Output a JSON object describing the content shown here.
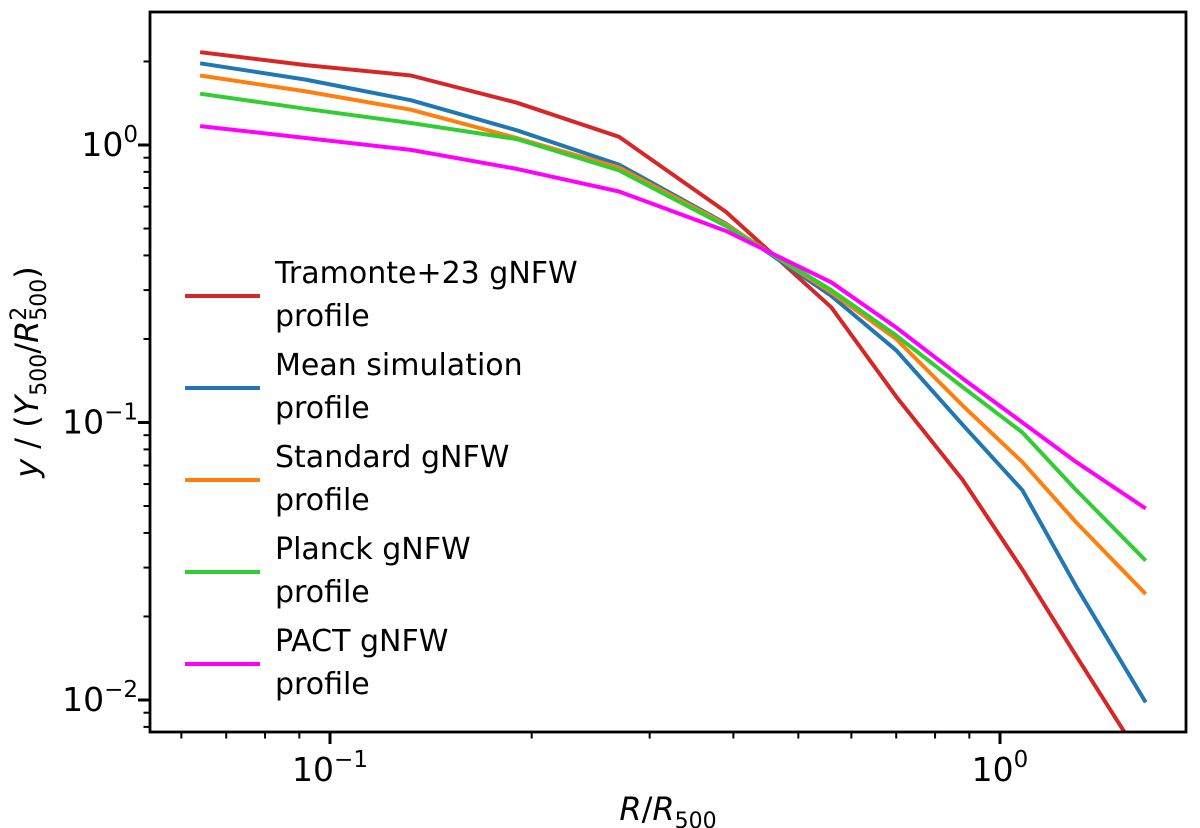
{
  "chart_data": {
    "type": "line",
    "title": "",
    "xlabel": "R/R500",
    "ylabel": "y / (Y500/R500^2)",
    "x_scale": "log",
    "y_scale": "log",
    "xlim": [
      0.054,
      1.9
    ],
    "ylim": [
      0.0077,
      3.0
    ],
    "grid": false,
    "legend_position": "inside center-left, no frame",
    "x_major_ticks": [
      {
        "value": 0.1,
        "base": "10",
        "exp": "−1"
      },
      {
        "value": 1.0,
        "base": "10",
        "exp": "0"
      }
    ],
    "y_major_ticks": [
      {
        "value": 1.0,
        "base": "10",
        "exp": "0"
      },
      {
        "value": 0.1,
        "base": "10",
        "exp": "−1"
      },
      {
        "value": 0.01,
        "base": "10",
        "exp": "−2"
      }
    ],
    "xlabel_parts": [
      {
        "t": "R",
        "italic": true
      },
      {
        "t": "/"
      },
      {
        "t": "R",
        "italic": true
      },
      {
        "t": "500",
        "script": "sub"
      }
    ],
    "ylabel_parts": [
      {
        "t": "y",
        "italic": true
      },
      {
        "t": " / ("
      },
      {
        "t": "Y",
        "italic": true
      },
      {
        "t": "500",
        "script": "sub"
      },
      {
        "t": "/"
      },
      {
        "t": "R",
        "italic": true
      },
      {
        "t": "2",
        "script": "sup"
      },
      {
        "t": "500",
        "script": "sub",
        "dx": -14
      },
      {
        "t": ")"
      }
    ],
    "x": [
      0.064,
      0.092,
      0.132,
      0.19,
      0.27,
      0.39,
      0.56,
      0.7,
      0.88,
      1.08,
      1.3,
      1.65
    ],
    "series": [
      {
        "name": "Tramonte+23 gNFW profile",
        "legend_lines": [
          "Tramonte+23 gNFW",
          "profile"
        ],
        "color": "#d62728",
        "values": [
          2.16,
          1.94,
          1.78,
          1.42,
          1.07,
          0.574,
          0.26,
          0.124,
          0.062,
          0.0295,
          0.0144,
          0.0058
        ]
      },
      {
        "name": "Mean simulation profile",
        "legend_lines": [
          "Mean simulation",
          "profile"
        ],
        "color": "#1f77b4",
        "values": [
          1.97,
          1.72,
          1.45,
          1.13,
          0.85,
          0.52,
          0.286,
          0.182,
          0.098,
          0.057,
          0.0256,
          0.0098
        ]
      },
      {
        "name": "Standard gNFW profile",
        "legend_lines": [
          "Standard gNFW",
          "profile"
        ],
        "color": "#ff7f0e",
        "values": [
          1.78,
          1.56,
          1.34,
          1.06,
          0.83,
          0.517,
          0.294,
          0.2,
          0.115,
          0.072,
          0.0436,
          0.0241
        ]
      },
      {
        "name": "Planck gNFW profile",
        "legend_lines": [
          "Planck gNFW",
          "profile"
        ],
        "color": "#32cd32",
        "values": [
          1.53,
          1.35,
          1.2,
          1.05,
          0.81,
          0.51,
          0.3,
          0.206,
          0.134,
          0.092,
          0.057,
          0.0318
        ]
      },
      {
        "name": "PACT gNFW profile",
        "legend_lines": [
          "PACT gNFW",
          "profile"
        ],
        "color": "#ff00ff",
        "values": [
          1.17,
          1.06,
          0.96,
          0.82,
          0.68,
          0.49,
          0.32,
          0.22,
          0.144,
          0.1,
          0.072,
          0.049
        ]
      }
    ]
  }
}
